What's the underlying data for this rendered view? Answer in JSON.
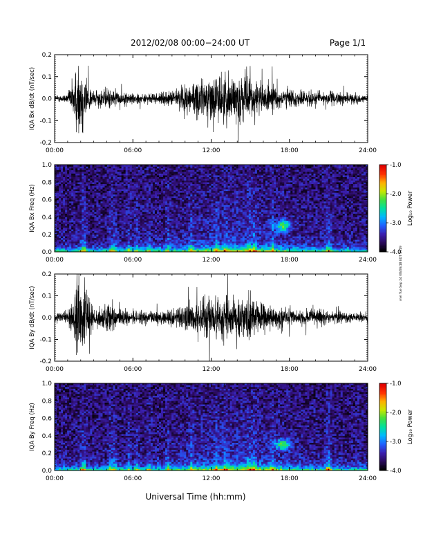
{
  "header": {
    "title": "2012/02/08  00:00−24:00 UT",
    "page": "Page 1/1"
  },
  "footer": {
    "xlabel": "Universal Time (hh:mm)",
    "side_note": "mel Tue Sep 24 08/06/18 EDT 2019"
  },
  "colors": {
    "trace": "#000000",
    "colormap": [
      "#000000",
      "#2a0a5a",
      "#3b1fb0",
      "#2060ff",
      "#00b8ff",
      "#00e0a0",
      "#40e040",
      "#c8e800",
      "#ffb000",
      "#ff3000",
      "#e00000"
    ]
  },
  "chart_data": [
    {
      "type": "line",
      "ylabel": "IQA Bx dB/dt (nT/sec)",
      "xlim": [
        0,
        24
      ],
      "ylim": [
        -0.2,
        0.2
      ],
      "xticks": [
        "00:00",
        "06:00",
        "12:00",
        "18:00",
        "24:00"
      ],
      "yticks": [
        "-0.2",
        "-0.1",
        "0.0",
        "0.1",
        "0.2"
      ],
      "envelope": {
        "hours": [
          0,
          1,
          1.8,
          2.2,
          2.6,
          3,
          4,
          5,
          6,
          7,
          8,
          9,
          10,
          11,
          12,
          13,
          14,
          15,
          16,
          17,
          18,
          19,
          20,
          21,
          22,
          23,
          24
        ],
        "amplitude": [
          0.02,
          0.03,
          0.25,
          0.25,
          0.1,
          0.05,
          0.07,
          0.04,
          0.04,
          0.03,
          0.035,
          0.05,
          0.1,
          0.12,
          0.15,
          0.16,
          0.16,
          0.14,
          0.1,
          0.08,
          0.06,
          0.05,
          0.05,
          0.045,
          0.04,
          0.03,
          0.02
        ]
      }
    },
    {
      "type": "heatmap",
      "ylabel": "IQA Bx Freq (Hz)",
      "xlim": [
        0,
        24
      ],
      "ylim": [
        0,
        1
      ],
      "xticks": [
        "00:00",
        "06:00",
        "12:00",
        "18:00",
        "24:00"
      ],
      "yticks": [
        "0.0",
        "0.2",
        "0.4",
        "0.6",
        "0.8",
        "1.0"
      ],
      "colorbar": {
        "label": "Log₁₀ Power",
        "ticks": [
          "-1.0",
          "-2.0",
          "-3.0",
          "-4.0"
        ],
        "range": [
          -4,
          -1
        ]
      }
    },
    {
      "type": "line",
      "ylabel": "IQA By dB/dt (nT/sec)",
      "xlim": [
        0,
        24
      ],
      "ylim": [
        -0.2,
        0.2
      ],
      "xticks": [
        "00:00",
        "06:00",
        "12:00",
        "18:00",
        "24:00"
      ],
      "yticks": [
        "-0.2",
        "-0.1",
        "0.0",
        "0.1",
        "0.2"
      ],
      "envelope": {
        "hours": [
          0,
          1,
          1.8,
          2.2,
          2.6,
          3,
          4,
          5,
          6,
          7,
          8,
          9,
          10,
          11,
          12,
          13,
          14,
          15,
          16,
          17,
          18,
          19,
          20,
          21,
          22,
          23,
          24
        ],
        "amplitude": [
          0.03,
          0.04,
          0.25,
          0.25,
          0.12,
          0.06,
          0.1,
          0.05,
          0.05,
          0.04,
          0.045,
          0.06,
          0.09,
          0.11,
          0.16,
          0.16,
          0.15,
          0.13,
          0.09,
          0.07,
          0.06,
          0.05,
          0.05,
          0.045,
          0.04,
          0.035,
          0.03
        ]
      }
    },
    {
      "type": "heatmap",
      "ylabel": "IQA By Freq (Hz)",
      "xlim": [
        0,
        24
      ],
      "ylim": [
        0,
        1
      ],
      "xticks": [
        "00:00",
        "06:00",
        "12:00",
        "18:00",
        "24:00"
      ],
      "yticks": [
        "0.0",
        "0.2",
        "0.4",
        "0.6",
        "0.8",
        "1.0"
      ],
      "colorbar": {
        "label": "Log₁₀ Power",
        "ticks": [
          "-1.0",
          "-2.0",
          "-3.0",
          "-4.0"
        ],
        "range": [
          -4,
          -1
        ]
      }
    }
  ]
}
